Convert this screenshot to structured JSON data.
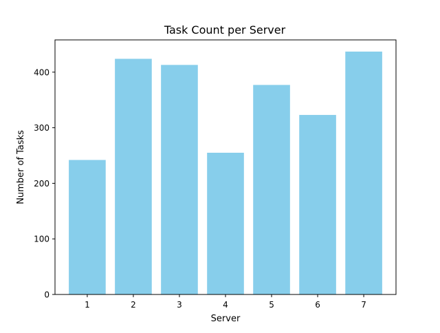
{
  "chart_data": {
    "type": "bar",
    "title": "Task Count per Server",
    "xlabel": "Server",
    "ylabel": "Number of Tasks",
    "categories": [
      "1",
      "2",
      "3",
      "4",
      "5",
      "6",
      "7"
    ],
    "values": [
      242,
      424,
      413,
      255,
      377,
      323,
      437
    ],
    "ylim": [
      0,
      458
    ],
    "yticks": [
      0,
      100,
      200,
      300,
      400
    ],
    "bar_color": "#87CEEB",
    "grid": false,
    "legend": "none"
  }
}
